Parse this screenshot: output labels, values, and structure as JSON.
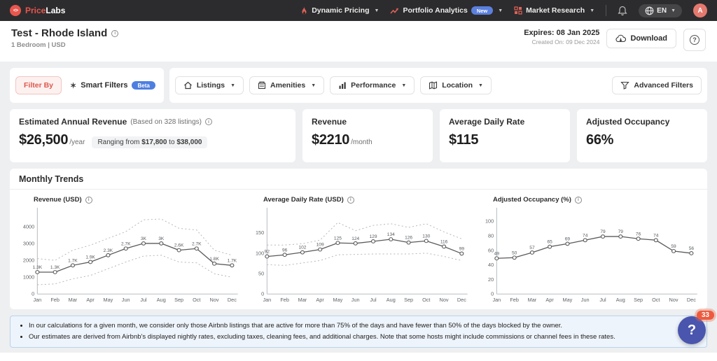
{
  "navbar": {
    "brand": {
      "part1": "Price",
      "part2": "Labs"
    },
    "items": [
      {
        "label": "Dynamic Pricing"
      },
      {
        "label": "Portfolio Analytics",
        "badge": "New"
      },
      {
        "label": "Market Research"
      }
    ],
    "language": "EN",
    "avatar_initial": "A"
  },
  "header": {
    "title": "Test - Rhode Island",
    "subtitle": "1 Bedroom | USD",
    "expires": "Expires: 08 Jan 2025",
    "created": "Created On: 09 Dec 2024",
    "download_label": "Download"
  },
  "filters": {
    "filter_by": "Filter By",
    "smart_filters": "Smart Filters",
    "beta_badge": "Beta",
    "dropdowns": [
      {
        "label": "Listings"
      },
      {
        "label": "Amenities"
      },
      {
        "label": "Performance"
      },
      {
        "label": "Location"
      }
    ],
    "advanced": "Advanced Filters"
  },
  "stats": {
    "annual": {
      "title": "Estimated Annual Revenue",
      "subtitle": "(Based on 328 listings)",
      "value": "$26,500",
      "unit": "/year",
      "range_prefix": "Ranging from ",
      "range_low": "$17,800",
      "range_mid": " to ",
      "range_high": "$38,000"
    },
    "cards": [
      {
        "title": "Revenue",
        "value": "$2210",
        "unit": "/month"
      },
      {
        "title": "Average Daily Rate",
        "value": "$115",
        "unit": ""
      },
      {
        "title": "Adjusted Occupancy",
        "value": "66%",
        "unit": ""
      }
    ]
  },
  "monthly_trends": {
    "title": "Monthly Trends"
  },
  "chart_data": [
    {
      "type": "line",
      "title": "Revenue (USD)",
      "x": [
        "Jan",
        "Feb",
        "Mar",
        "Apr",
        "May",
        "Jun",
        "Jul",
        "Aug",
        "Sep",
        "Oct",
        "Nov",
        "Dec"
      ],
      "values": [
        1300,
        1300,
        1700,
        1900,
        2300,
        2700,
        3000,
        3000,
        2600,
        2700,
        1800,
        1700
      ],
      "labels": [
        "1.3K",
        "1.3K",
        "1.7K",
        "1.9K",
        "2.3K",
        "2.7K",
        "3K",
        "3K",
        "2.6K",
        "2.7K",
        "1.8K",
        "1.7K"
      ],
      "bands": [
        [
          2100,
          2000,
          2600,
          2900,
          3300,
          3700,
          4400,
          4450,
          3900,
          3800,
          2600,
          2300
        ],
        [
          550,
          600,
          900,
          1100,
          1500,
          1900,
          2250,
          2300,
          1900,
          1850,
          1200,
          1000
        ]
      ],
      "yticks": [
        0,
        1000,
        2000,
        3000,
        4000
      ],
      "ylim": [
        0,
        4750
      ],
      "xlabel": "",
      "ylabel": "",
      "grid": false,
      "legend": "none"
    },
    {
      "type": "line",
      "title": "Average Daily Rate (USD)",
      "x": [
        "Jan",
        "Feb",
        "Mar",
        "Apr",
        "May",
        "Jun",
        "Jul",
        "Aug",
        "Sep",
        "Oct",
        "Nov",
        "Dec"
      ],
      "values": [
        92,
        96,
        102,
        109,
        125,
        124,
        129,
        134,
        126,
        130,
        116,
        99
      ],
      "labels": [
        "92",
        "96",
        "102",
        "109",
        "125",
        "124",
        "129",
        "134",
        "126",
        "130",
        "116",
        "99"
      ],
      "bands": [
        [
          120,
          120,
          123,
          132,
          175,
          155,
          168,
          172,
          163,
          172,
          152,
          135
        ],
        [
          72,
          70,
          76,
          82,
          96,
          97,
          98,
          98,
          98,
          100,
          92,
          82
        ]
      ],
      "yticks": [
        0,
        50,
        100,
        150
      ],
      "ylim": [
        0,
        196
      ],
      "xlabel": "",
      "ylabel": "",
      "grid": false,
      "legend": "none"
    },
    {
      "type": "line",
      "title": "Adjusted Occupancy (%)",
      "x": [
        "Jan",
        "Feb",
        "Mar",
        "Apr",
        "May",
        "Jun",
        "Jul",
        "Aug",
        "Sep",
        "Oct",
        "Nov",
        "Dec"
      ],
      "values": [
        49,
        50,
        57,
        65,
        69,
        74,
        79,
        79,
        76,
        74,
        59,
        56
      ],
      "labels": [
        "49",
        "50",
        "57",
        "65",
        "69",
        "74",
        "79",
        "79",
        "76",
        "74",
        "59",
        "56"
      ],
      "bands": [],
      "yticks": [
        0,
        20,
        40,
        60,
        80,
        100
      ],
      "ylim": [
        0,
        110
      ],
      "xlabel": "",
      "ylabel": "",
      "grid": false,
      "legend": "none"
    }
  ],
  "notes": [
    "In our calculations for a given month, we consider only those Airbnb listings that are active for more than 75% of the days and have fewer than 50% of the days blocked by the owner.",
    "Our estimates are derived from Airbnb's displayed nightly rates, excluding taxes, cleaning fees, and additional charges. Note that some hosts might include commissions or channel fees in these rates."
  ],
  "chat": {
    "icon": "?",
    "badge": "33"
  }
}
